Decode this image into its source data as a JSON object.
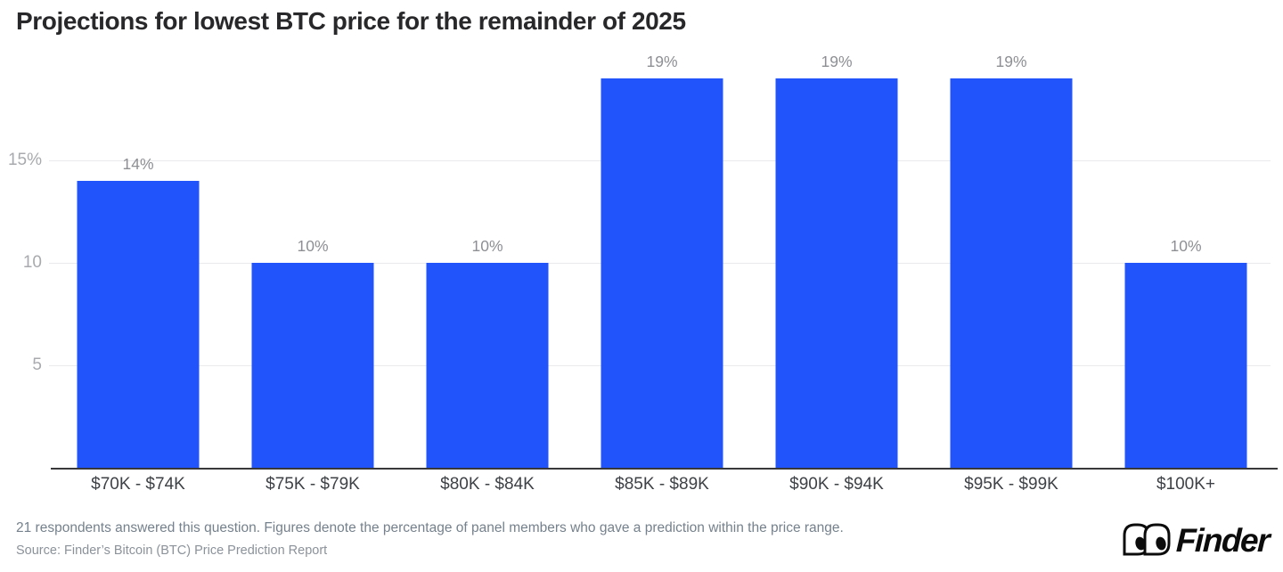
{
  "title": "Projections for lowest BTC price for the remainder of 2025",
  "chart_data": {
    "type": "bar",
    "title": "Projections for lowest BTC price for the remainder of 2025",
    "categories": [
      "$70K - $74K",
      "$75K - $79K",
      "$80K - $84K",
      "$85K - $89K",
      "$90K - $94K",
      "$95K - $99K",
      "$100K+"
    ],
    "values": [
      14,
      10,
      10,
      19,
      19,
      19,
      10
    ],
    "value_labels": [
      "14%",
      "10%",
      "10%",
      "19%",
      "19%",
      "19%",
      "10%"
    ],
    "xlabel": "",
    "ylabel": "",
    "ylim": [
      0,
      20
    ],
    "yticks": [
      {
        "value": 5,
        "label": "5"
      },
      {
        "value": 10,
        "label": "10"
      },
      {
        "value": 15,
        "label": "15%"
      }
    ],
    "grid": "horizontal",
    "legend_position": "none",
    "bar_color": "#2154fa"
  },
  "footer": {
    "note": "21 respondents answered this question. Figures denote the percentage of panel members who gave a prediction within the price range.",
    "source": "Source: Finder’s Bitcoin (BTC) Price Prediction Report",
    "logo_text": "Finder"
  },
  "colors": {
    "bar": "#2154fa",
    "title_text": "#28282b",
    "value_label_text": "#8d8f93",
    "tick_label_text": "#a8aaad",
    "x_label_text": "#3e4145",
    "gridline": "#eaeaec",
    "axis_line": "#38383a",
    "footnote_text": "#75818c",
    "source_text": "#8b929a",
    "background": "#ffffff"
  }
}
